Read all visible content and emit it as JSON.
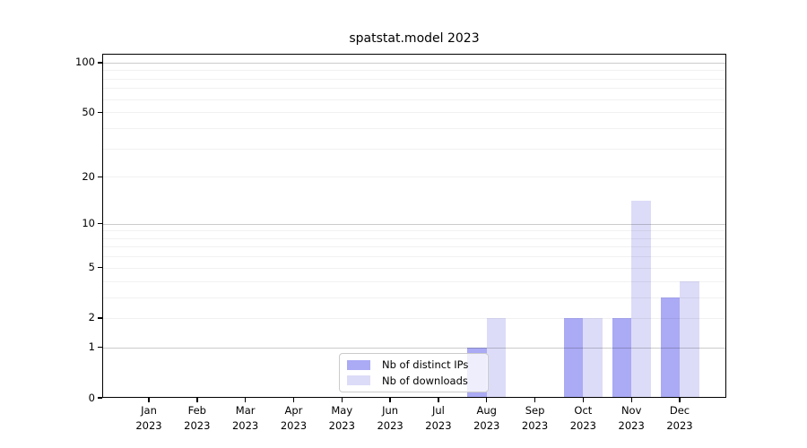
{
  "chart_data": {
    "type": "bar",
    "title": "spatstat.model 2023",
    "categories": [
      "Jan",
      "Feb",
      "Mar",
      "Apr",
      "May",
      "Jun",
      "Jul",
      "Aug",
      "Sep",
      "Oct",
      "Nov",
      "Dec"
    ],
    "category_year": "2023",
    "series": [
      {
        "name": "Nb of distinct IPs",
        "color": "#aaaaf5",
        "values": [
          0,
          0,
          0,
          0,
          0,
          0,
          0,
          1,
          0,
          2,
          2,
          3
        ]
      },
      {
        "name": "Nb of downloads",
        "color": "#dcdcf8",
        "values": [
          0,
          0,
          0,
          0,
          0,
          0,
          0,
          2,
          0,
          2,
          14,
          4
        ]
      }
    ],
    "xlabel": "",
    "ylabel": "",
    "yscale": "log1p",
    "ylim": [
      0,
      113
    ],
    "y_ticks": [
      0,
      1,
      2,
      5,
      10,
      20,
      50,
      100
    ],
    "y_tick_labels": [
      "0",
      "1",
      "2",
      "5",
      "10",
      "20",
      "50",
      "100"
    ],
    "grid": "on",
    "grid_minor_values": [
      2,
      3,
      4,
      5,
      6,
      7,
      8,
      9,
      20,
      30,
      40,
      50,
      60,
      70,
      80,
      90
    ],
    "grid_major_values": [
      1,
      10,
      100
    ],
    "legend_position": "inside-bottom-center"
  }
}
